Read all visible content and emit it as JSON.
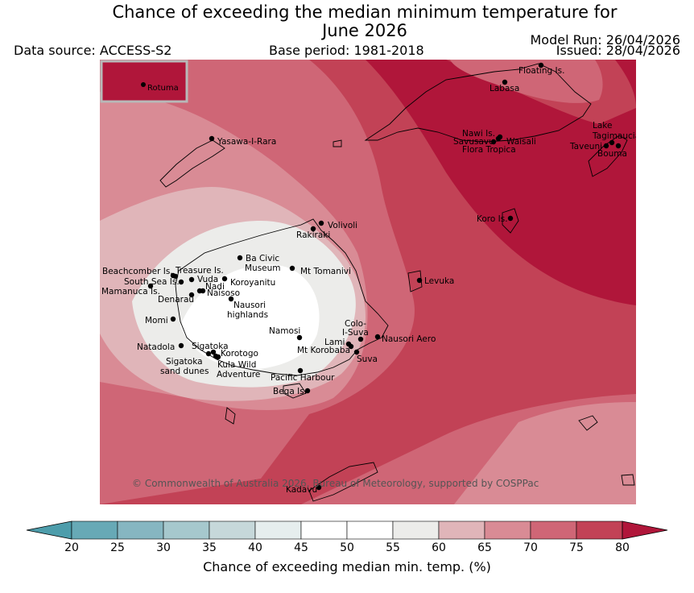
{
  "title_line1": "Chance of exceeding the median minimum temperature for",
  "title_line2": "June 2026",
  "data_source": "Data source: ACCESS-S2",
  "base_period": "Base period: 1981-2018",
  "model_run": "Model Run: 26/04/2026",
  "issued": "Issued: 28/04/2026",
  "inset_label": "Rotuma",
  "copyright": "© Commonwealth of Australia 2026, Bureau of Meteorology, supported by COSPPac",
  "places": [
    {
      "id": "floating-is",
      "name": "Floating Is."
    },
    {
      "id": "labasa",
      "name": "Labasa"
    },
    {
      "id": "nawi-is",
      "name": "Nawi Is."
    },
    {
      "id": "savusavu",
      "name": "Savusavu"
    },
    {
      "id": "waisali",
      "name": "Waisali"
    },
    {
      "id": "flora-tropica",
      "name": "Flora Tropica"
    },
    {
      "id": "lake-tagimaucia",
      "name": "Lake Tagimaucia"
    },
    {
      "id": "taveuni",
      "name": "Taveuni"
    },
    {
      "id": "bouma",
      "name": "Bouma"
    },
    {
      "id": "yasawa-i-rara",
      "name": "Yasawa-I-Rara"
    },
    {
      "id": "koro-is",
      "name": "Koro Is."
    },
    {
      "id": "volivoli",
      "name": "Volivoli"
    },
    {
      "id": "rakiraki",
      "name": "Rakiraki"
    },
    {
      "id": "ba-civic-museum",
      "name": "Ba Civic Museum"
    },
    {
      "id": "mt-tomanivi",
      "name": "Mt Tomanivi"
    },
    {
      "id": "levuka",
      "name": "Levuka"
    },
    {
      "id": "beachcomber-is",
      "name": "Beachcomber Is."
    },
    {
      "id": "treasure-is",
      "name": "Treasure Is."
    },
    {
      "id": "south-sea-is",
      "name": "South Sea Is."
    },
    {
      "id": "vuda",
      "name": "Vuda"
    },
    {
      "id": "koroyanitu",
      "name": "Koroyanitu"
    },
    {
      "id": "nadi",
      "name": "Nadi"
    },
    {
      "id": "mamanuca-is",
      "name": "Mamanuca Is."
    },
    {
      "id": "naisoso",
      "name": "Naisoso"
    },
    {
      "id": "denarau",
      "name": "Denarau"
    },
    {
      "id": "nausori-highlands",
      "name": "Nausori highlands"
    },
    {
      "id": "momi",
      "name": "Momi"
    },
    {
      "id": "colo-i-suva",
      "name": "Colo-I-Suva"
    },
    {
      "id": "namosi",
      "name": "Namosi"
    },
    {
      "id": "nausori-aero",
      "name": "Nausori Aero"
    },
    {
      "id": "lami",
      "name": "Lami"
    },
    {
      "id": "natadola",
      "name": "Natadola"
    },
    {
      "id": "sigatoka",
      "name": "Sigatoka"
    },
    {
      "id": "mt-korobaba",
      "name": "Mt Korobaba"
    },
    {
      "id": "korotogo",
      "name": "Korotogo"
    },
    {
      "id": "suva",
      "name": "Suva"
    },
    {
      "id": "sigatoka-sand-dunes",
      "name": "Sigatoka sand dunes"
    },
    {
      "id": "kula-wild-adventure",
      "name": "Kula Wild Adventure"
    },
    {
      "id": "pacific-harbour",
      "name": "Pacific Harbour"
    },
    {
      "id": "beqa-is",
      "name": "Beqa Is."
    },
    {
      "id": "kadavu",
      "name": "Kadavu"
    }
  ],
  "colorbar": {
    "label": "Chance of exceeding median min. temp. (%)",
    "ticks": [
      "20",
      "25",
      "30",
      "35",
      "40",
      "45",
      "50",
      "55",
      "60",
      "65",
      "70",
      "75",
      "80"
    ],
    "under_color": "#4d9dab",
    "over_color": "#b0163a",
    "colors": [
      "#67a9b6",
      "#86b6c1",
      "#a6c8cd",
      "#c6d8da",
      "#e6eeee",
      "#ffffff",
      "#ffffff",
      "#ececea",
      "#e0b5b9",
      "#d98b95",
      "#cf6676",
      "#c24256"
    ]
  },
  "field_colors": {
    "c55_60": "#ececea",
    "c60_65": "#e0b5b9",
    "c65_70": "#d98b95",
    "c70_75": "#cf6676",
    "c75_80": "#c24256",
    "c80": "#b0163a"
  }
}
